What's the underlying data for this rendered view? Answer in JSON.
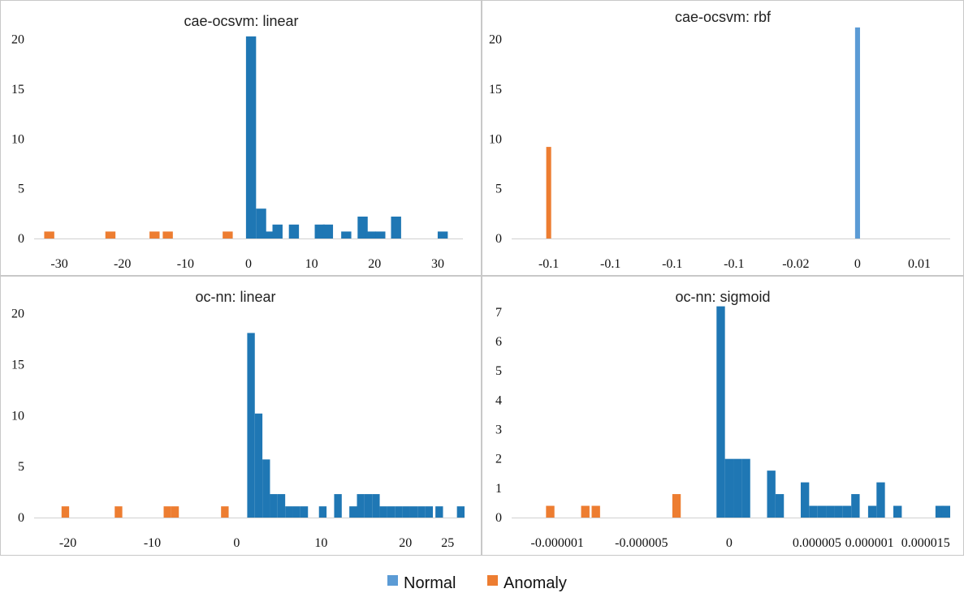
{
  "colors": {
    "normal": "#1f77b4",
    "normal_light": "#5b9bd5",
    "anomaly": "#ed7d31"
  },
  "legend": {
    "placement": "bottom-center",
    "items": [
      {
        "label": "Normal",
        "color": "#5b9bd5"
      },
      {
        "label": "Anomaly",
        "color": "#ed7d31"
      }
    ]
  },
  "chart_data": [
    {
      "type": "bar",
      "title": "cae-ocsvm: linear",
      "xlabel": "",
      "ylabel": "",
      "xlim": [
        -34,
        34
      ],
      "ylim": [
        0,
        22
      ],
      "yticks": [
        0,
        5,
        10,
        15,
        20
      ],
      "xticks": [
        {
          "value": -30,
          "label": "-30"
        },
        {
          "value": -20,
          "label": "-20"
        },
        {
          "value": -10,
          "label": "-10"
        },
        {
          "value": 0,
          "label": "0"
        },
        {
          "value": 10,
          "label": "10"
        },
        {
          "value": 20,
          "label": "20"
        },
        {
          "value": 30,
          "label": "30"
        }
      ],
      "bin_width": 1.6,
      "grid": false,
      "series": [
        {
          "kind": "normal",
          "bins": [
            {
              "x": 0.4,
              "y": 20.3
            },
            {
              "x": 2.0,
              "y": 3.0
            },
            {
              "x": 3.3,
              "y": 0.7
            },
            {
              "x": 4.6,
              "y": 1.4
            },
            {
              "x": 7.2,
              "y": 1.4
            },
            {
              "x": 11.3,
              "y": 1.4
            },
            {
              "x": 12.6,
              "y": 1.4
            },
            {
              "x": 15.5,
              "y": 0.7
            },
            {
              "x": 18.1,
              "y": 2.2
            },
            {
              "x": 19.4,
              "y": 0.7
            },
            {
              "x": 20.9,
              "y": 0.7
            },
            {
              "x": 23.4,
              "y": 2.2
            },
            {
              "x": 30.8,
              "y": 0.7
            }
          ]
        },
        {
          "kind": "anomaly",
          "bins": [
            {
              "x": -31.6,
              "y": 0.7
            },
            {
              "x": -21.9,
              "y": 0.7
            },
            {
              "x": -14.9,
              "y": 0.7
            },
            {
              "x": -12.8,
              "y": 0.7
            },
            {
              "x": -3.3,
              "y": 0.7
            }
          ]
        }
      ]
    },
    {
      "type": "bar",
      "title": "cae-ocsvm: rbf",
      "xlabel": "",
      "ylabel": "",
      "xlim": [
        -0.6,
        6.5
      ],
      "ylim": [
        0,
        22
      ],
      "yticks": [
        0,
        5,
        10,
        15,
        20
      ],
      "xticks": [
        {
          "value": 0,
          "label": "-0.1"
        },
        {
          "value": 1,
          "label": "-0.1"
        },
        {
          "value": 2,
          "label": "-0.1"
        },
        {
          "value": 3,
          "label": "-0.1"
        },
        {
          "value": 4,
          "label": "-0.02"
        },
        {
          "value": 5,
          "label": "0"
        },
        {
          "value": 6,
          "label": "0.01"
        }
      ],
      "bin_width": 0.08,
      "grid": false,
      "series": [
        {
          "kind": "normal_light",
          "bins": [
            {
              "x": 5.0,
              "y": 21.2
            }
          ]
        },
        {
          "kind": "anomaly",
          "bins": [
            {
              "x": 0.0,
              "y": 9.2
            }
          ]
        }
      ]
    },
    {
      "type": "bar",
      "title": "oc-nn: linear",
      "xlabel": "",
      "ylabel": "",
      "xlim": [
        -24,
        27
      ],
      "ylim": [
        0,
        21
      ],
      "yticks": [
        0,
        5,
        10,
        15,
        20
      ],
      "xticks": [
        {
          "value": -20,
          "label": "-20"
        },
        {
          "value": -10,
          "label": "-10"
        },
        {
          "value": 0,
          "label": "0"
        },
        {
          "value": 10,
          "label": "10"
        },
        {
          "value": 20,
          "label": "20"
        },
        {
          "value": 25,
          "label": "25"
        }
      ],
      "bin_width": 0.9,
      "grid": false,
      "series": [
        {
          "kind": "normal",
          "bins": [
            {
              "x": 1.7,
              "y": 18.1
            },
            {
              "x": 2.6,
              "y": 10.2
            },
            {
              "x": 3.5,
              "y": 5.7
            },
            {
              "x": 4.4,
              "y": 2.3
            },
            {
              "x": 5.3,
              "y": 2.3
            },
            {
              "x": 6.2,
              "y": 1.1
            },
            {
              "x": 7.1,
              "y": 1.1
            },
            {
              "x": 8.0,
              "y": 1.1
            },
            {
              "x": 10.2,
              "y": 1.1
            },
            {
              "x": 12.0,
              "y": 2.3
            },
            {
              "x": 13.8,
              "y": 1.1
            },
            {
              "x": 14.7,
              "y": 2.3
            },
            {
              "x": 15.6,
              "y": 2.3
            },
            {
              "x": 16.5,
              "y": 2.3
            },
            {
              "x": 17.4,
              "y": 1.1
            },
            {
              "x": 18.3,
              "y": 1.1
            },
            {
              "x": 19.2,
              "y": 1.1
            },
            {
              "x": 20.1,
              "y": 1.1
            },
            {
              "x": 21.0,
              "y": 1.1
            },
            {
              "x": 21.9,
              "y": 1.1
            },
            {
              "x": 22.8,
              "y": 1.1
            },
            {
              "x": 24.0,
              "y": 1.1
            },
            {
              "x": 27.1,
              "y": 1.1
            }
          ]
        },
        {
          "kind": "anomaly",
          "bins": [
            {
              "x": -20.3,
              "y": 1.1
            },
            {
              "x": -14.0,
              "y": 1.1
            },
            {
              "x": -8.2,
              "y": 1.1
            },
            {
              "x": -7.3,
              "y": 1.1
            },
            {
              "x": -1.4,
              "y": 1.1
            }
          ]
        }
      ]
    },
    {
      "type": "bar",
      "title": "oc-nn: sigmoid",
      "xlabel": "",
      "ylabel": "",
      "xlim": [
        -3.1,
        3.15
      ],
      "ylim": [
        0,
        7.3
      ],
      "yticks": [
        0,
        1,
        2,
        3,
        4,
        5,
        6,
        7
      ],
      "xticks": [
        {
          "value": -2.45,
          "label": "-0.000001"
        },
        {
          "value": -1.25,
          "label": "-0.000005"
        },
        {
          "value": 0,
          "label": "0"
        },
        {
          "value": 1.25,
          "label": "0.000005"
        },
        {
          "value": 2.0,
          "label": "0.000001"
        },
        {
          "value": 2.8,
          "label": "0.000015"
        }
      ],
      "bin_width": 0.12,
      "grid": false,
      "series": [
        {
          "kind": "normal",
          "bins": [
            {
              "x": -0.12,
              "y": 7.2
            },
            {
              "x": 0.0,
              "y": 2.0
            },
            {
              "x": 0.12,
              "y": 2.0
            },
            {
              "x": 0.24,
              "y": 2.0
            },
            {
              "x": 0.6,
              "y": 1.6
            },
            {
              "x": 0.72,
              "y": 0.8
            },
            {
              "x": 1.08,
              "y": 1.2
            },
            {
              "x": 1.2,
              "y": 0.4
            },
            {
              "x": 1.32,
              "y": 0.4
            },
            {
              "x": 1.44,
              "y": 0.4
            },
            {
              "x": 1.56,
              "y": 0.4
            },
            {
              "x": 1.68,
              "y": 0.4
            },
            {
              "x": 1.8,
              "y": 0.8
            },
            {
              "x": 2.04,
              "y": 0.4
            },
            {
              "x": 2.16,
              "y": 1.2
            },
            {
              "x": 2.4,
              "y": 0.4
            },
            {
              "x": 3.0,
              "y": 0.4
            },
            {
              "x": 3.27,
              "y": 0.4
            }
          ]
        },
        {
          "kind": "anomaly",
          "bins": [
            {
              "x": -2.55,
              "y": 0.4
            },
            {
              "x": -2.05,
              "y": 0.4
            },
            {
              "x": -1.9,
              "y": 0.4
            },
            {
              "x": -0.75,
              "y": 0.8
            }
          ]
        }
      ]
    }
  ]
}
